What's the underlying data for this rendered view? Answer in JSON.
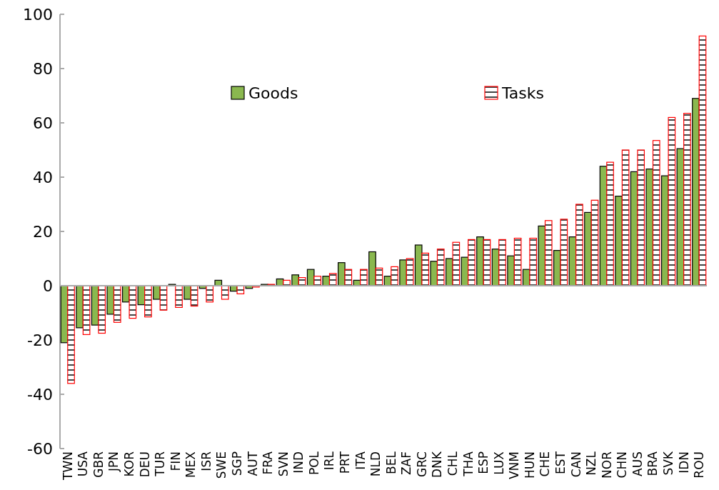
{
  "chart_data": {
    "type": "bar",
    "categories": [
      "TWN",
      "USA",
      "GBR",
      "JPN",
      "KOR",
      "DEU",
      "TUR",
      "FIN",
      "MEX",
      "ISR",
      "SWE",
      "SGP",
      "AUT",
      "FRA",
      "SVN",
      "IND",
      "POL",
      "IRL",
      "PRT",
      "ITA",
      "NLD",
      "BEL",
      "ZAF",
      "GRC",
      "DNK",
      "CHL",
      "THA",
      "ESP",
      "LUX",
      "VNM",
      "HUN",
      "CHE",
      "EST",
      "CAN",
      "NZL",
      "NOR",
      "CHN",
      "AUS",
      "BRA",
      "SVK",
      "IDN",
      "ROU"
    ],
    "series": [
      {
        "name": "Goods",
        "color": "#8ab84f",
        "values": [
          -21,
          -15.5,
          -14.5,
          -10.5,
          -6,
          -7,
          -5,
          0.5,
          -5,
          -1,
          2,
          -2,
          -1,
          0.5,
          2.5,
          4,
          6,
          3.5,
          8.5,
          2,
          12.5,
          3.5,
          9.5,
          15,
          9,
          10,
          10.5,
          18,
          13.5,
          11,
          6,
          22,
          13,
          18,
          27,
          44,
          33,
          42,
          43,
          40.5,
          50.5,
          69
        ]
      },
      {
        "name": "Tasks",
        "color": "#ff0000",
        "values": [
          -36,
          -18,
          -17.5,
          -13.5,
          -12,
          -11.5,
          -9,
          -8,
          -7.5,
          -6,
          -5,
          -3,
          -0.5,
          0.5,
          2,
          3,
          3.5,
          4.5,
          6,
          6,
          6.5,
          7,
          10,
          12,
          13.5,
          16,
          17,
          17,
          17,
          17.5,
          17.5,
          24,
          24.5,
          30,
          31.5,
          45.5,
          50,
          50,
          53.5,
          62,
          63.5,
          92
        ]
      }
    ],
    "ylim": [
      -60,
      100
    ],
    "yticks": [
      -60,
      -40,
      -20,
      0,
      20,
      40,
      60,
      80,
      100
    ],
    "legend": "top"
  }
}
